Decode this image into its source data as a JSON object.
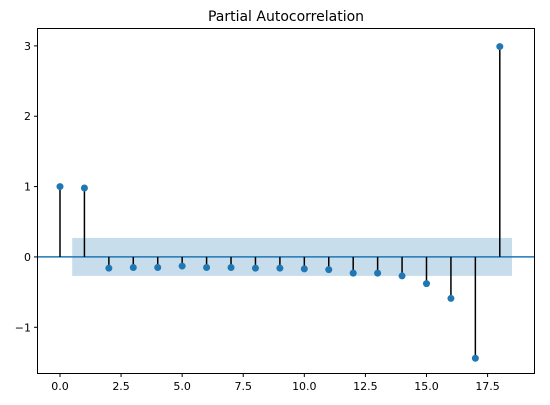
{
  "chart_data": {
    "type": "stem",
    "title": "Partial Autocorrelation",
    "xlabel": "",
    "ylabel": "",
    "xlim": [
      -0.9,
      19.4
    ],
    "ylim": [
      -1.65,
      3.24
    ],
    "xticks": [
      0.0,
      2.5,
      5.0,
      7.5,
      10.0,
      12.5,
      15.0,
      17.5
    ],
    "xtick_labels": [
      "0.0",
      "2.5",
      "5.0",
      "7.5",
      "10.0",
      "12.5",
      "15.0",
      "17.5"
    ],
    "yticks": [
      -1,
      0,
      1,
      2,
      3
    ],
    "ytick_labels": [
      "−1",
      "0",
      "1",
      "2",
      "3"
    ],
    "lags": [
      0,
      1,
      2,
      3,
      4,
      5,
      6,
      7,
      8,
      9,
      10,
      11,
      12,
      13,
      14,
      15,
      16,
      17,
      18
    ],
    "values": [
      1.0,
      0.98,
      -0.16,
      -0.15,
      -0.15,
      -0.13,
      -0.15,
      -0.15,
      -0.16,
      -0.16,
      -0.17,
      -0.18,
      -0.23,
      -0.23,
      -0.27,
      -0.38,
      -0.59,
      -1.44,
      2.99
    ],
    "confidence_band": {
      "x_start": 0.5,
      "x_end": 18.5,
      "lower": -0.27,
      "upper": 0.27
    },
    "colors": {
      "marker": "#1f77b4",
      "stem": "#000000",
      "baseline": "#1f77b4",
      "band": "#1f77b4"
    },
    "grid": false
  }
}
